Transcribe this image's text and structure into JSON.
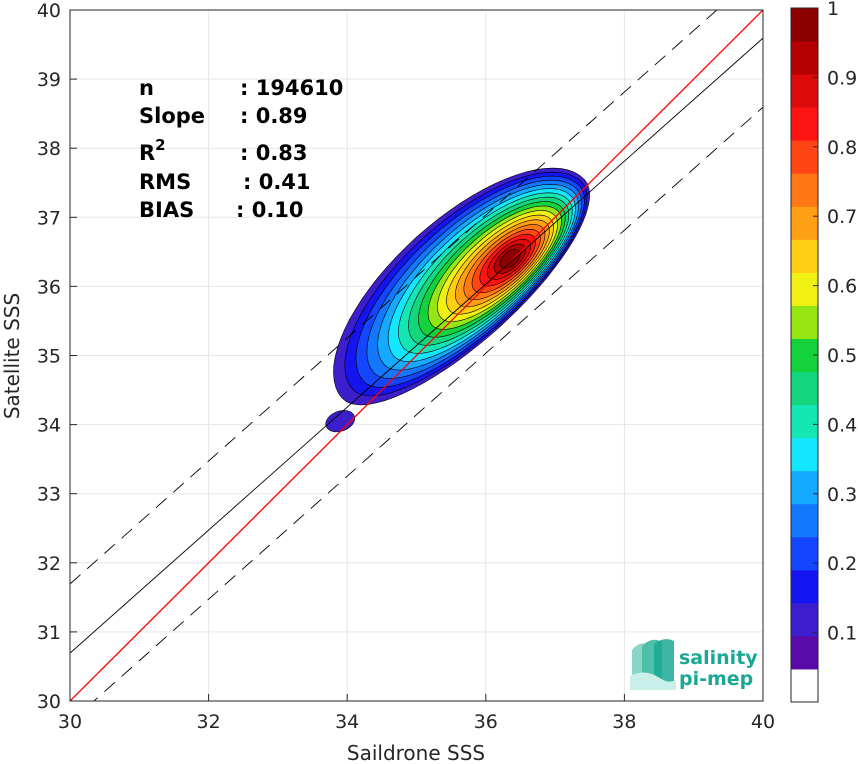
{
  "chart_data": {
    "type": "heatmap",
    "xlabel": "Saildrone SSS",
    "ylabel": "Satellite SSS",
    "xlim": [
      30,
      40
    ],
    "ylim": [
      30,
      40
    ],
    "x_ticks": [
      "30",
      "32",
      "34",
      "36",
      "38",
      "40"
    ],
    "y_ticks": [
      "30",
      "31",
      "32",
      "33",
      "34",
      "35",
      "36",
      "37",
      "38",
      "39",
      "40"
    ],
    "grid": true,
    "reference_lines": {
      "one_to_one": {
        "color": "#ff0000",
        "points": [
          [
            30,
            30
          ],
          [
            40,
            40
          ]
        ]
      },
      "regression": {
        "color": "#000000",
        "slope": 0.89,
        "bias": 0.1
      },
      "bounds": {
        "style": "dashed",
        "offset": 1.0
      }
    },
    "stats": [
      {
        "label": "n",
        "value": ": 194610"
      },
      {
        "label": "Slope",
        "value": ": 0.89"
      },
      {
        "label": "R",
        "sup": "2",
        "value": ": 0.83"
      },
      {
        "label": "RMS",
        "value": ": 0.41"
      },
      {
        "label": "BIAS",
        "value": ": 0.10"
      }
    ],
    "density": {
      "main_peak": {
        "x": 36.35,
        "y": 36.4
      },
      "secondary_blob": {
        "x": 33.9,
        "y": 34.05,
        "level": 0.1
      }
    },
    "colorbar": {
      "ticks": [
        "0.1",
        "0.2",
        "0.3",
        "0.4",
        "0.5",
        "0.6",
        "0.7",
        "0.8",
        "0.9",
        "1"
      ],
      "range": [
        0,
        1
      ],
      "colors": [
        "#ffffff",
        "#5a0aa8",
        "#3c1ecc",
        "#1414f0",
        "#1446ff",
        "#1478ff",
        "#14aaff",
        "#14e6ff",
        "#14e6b4",
        "#14d77d",
        "#14d23c",
        "#96e614",
        "#f0f014",
        "#ffcd14",
        "#ffa014",
        "#ff7814",
        "#ff4614",
        "#ff1414",
        "#dc0a0a",
        "#b40000",
        "#8c0000"
      ]
    }
  },
  "logo": {
    "line1": "salinity",
    "line2": "pi-mep"
  }
}
